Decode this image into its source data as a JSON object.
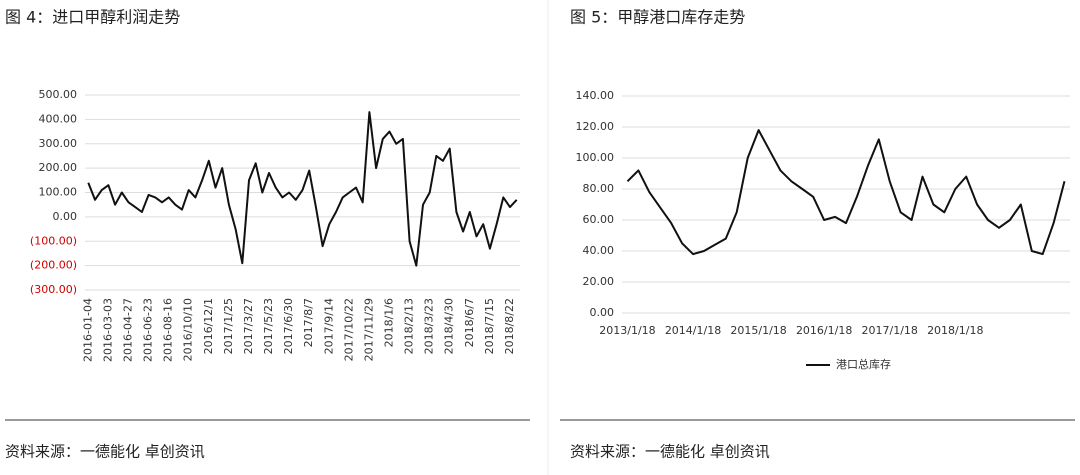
{
  "chart_data": [
    {
      "type": "line",
      "title": "图 4：进口甲醇利润走势",
      "source": "资料来源：一德能化  卓创资讯",
      "categories": [
        "2016-01-04",
        null,
        null,
        "2016-03-03",
        null,
        null,
        "2016-04-27",
        null,
        null,
        "2016-06-23",
        null,
        null,
        "2016-08-16",
        null,
        null,
        "2016/10/10",
        null,
        null,
        "2016/12/1",
        null,
        null,
        "2017/1/25",
        null,
        null,
        "2017/3/27",
        null,
        null,
        "2017/5/23",
        null,
        null,
        "2017/6/30",
        null,
        null,
        "2017/8/7",
        null,
        null,
        "2017/9/14",
        null,
        null,
        "2017/10/22",
        null,
        null,
        "2017/11/29",
        null,
        null,
        "2018/1/6",
        null,
        null,
        "2018/2/13",
        null,
        null,
        "2018/3/23",
        null,
        null,
        "2018/4/30",
        null,
        null,
        "2018/6/7",
        null,
        null,
        "2018/7/15",
        null,
        null,
        "2018/8/22",
        null
      ],
      "series": [
        {
          "color": "#111111",
          "values": [
            140,
            70,
            110,
            130,
            50,
            100,
            60,
            40,
            20,
            90,
            80,
            60,
            80,
            50,
            30,
            110,
            80,
            150,
            230,
            120,
            200,
            50,
            -50,
            -190,
            150,
            220,
            100,
            180,
            120,
            80,
            100,
            70,
            110,
            190,
            40,
            -120,
            -30,
            20,
            80,
            100,
            120,
            60,
            430,
            200,
            320,
            350,
            300,
            320,
            -100,
            -200,
            50,
            100,
            250,
            230,
            280,
            20,
            -60,
            20,
            -80,
            -30,
            -130,
            -30,
            80,
            40,
            70
          ]
        }
      ],
      "ylim": [
        -300,
        500
      ],
      "yticks": [
        {
          "value": 500,
          "label": "500.00"
        },
        {
          "value": 400,
          "label": "400.00"
        },
        {
          "value": 300,
          "label": "300.00"
        },
        {
          "value": 200,
          "label": "200.00"
        },
        {
          "value": 100,
          "label": "100.00"
        },
        {
          "value": 0,
          "label": "0.00"
        },
        {
          "value": -100,
          "label": "(100.00)"
        },
        {
          "value": -200,
          "label": "(200.00)"
        },
        {
          "value": -300,
          "label": "(300.00)"
        }
      ],
      "grid": true
    },
    {
      "type": "line",
      "title": "图 5：甲醇港口库存走势",
      "source": "资料来源：一德能化  卓创资讯",
      "categories": [
        "2013/1/18",
        null,
        null,
        null,
        null,
        null,
        "2014/1/18",
        null,
        null,
        null,
        null,
        null,
        "2015/1/18",
        null,
        null,
        null,
        null,
        null,
        "2016/1/18",
        null,
        null,
        null,
        null,
        null,
        "2017/1/18",
        null,
        null,
        null,
        null,
        null,
        "2018/1/18",
        null,
        null,
        null,
        null,
        null,
        null,
        null,
        null,
        null,
        null
      ],
      "series": [
        {
          "name": "港口总库存",
          "color": "#111111",
          "values": [
            85,
            92,
            78,
            68,
            58,
            45,
            38,
            40,
            44,
            48,
            65,
            100,
            118,
            105,
            92,
            85,
            80,
            75,
            60,
            62,
            58,
            75,
            95,
            112,
            85,
            65,
            60,
            88,
            70,
            65,
            80,
            88,
            70,
            60,
            55,
            60,
            70,
            40,
            38,
            58,
            85
          ]
        }
      ],
      "ylim": [
        0,
        140
      ],
      "yticks": [
        {
          "value": 0,
          "label": "0.00"
        },
        {
          "value": 20,
          "label": "20.00"
        },
        {
          "value": 40,
          "label": "40.00"
        },
        {
          "value": 60,
          "label": "60.00"
        },
        {
          "value": 80,
          "label": "80.00"
        },
        {
          "value": 100,
          "label": "100.00"
        },
        {
          "value": 120,
          "label": "120.00"
        },
        {
          "value": 140,
          "label": "140.00"
        }
      ],
      "grid": true
    }
  ]
}
